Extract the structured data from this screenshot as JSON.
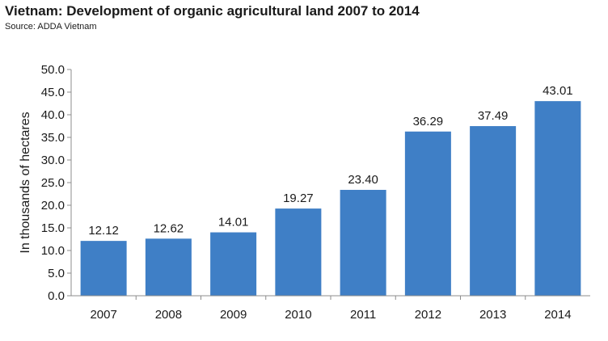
{
  "chart_data": {
    "type": "bar",
    "title": "Vietnam: Development of organic agricultural land 2007 to 2014",
    "subtitle": "Source: ADDA Vietnam",
    "xlabel": "",
    "ylabel": "In thousands of hectares",
    "categories": [
      "2007",
      "2008",
      "2009",
      "2010",
      "2011",
      "2012",
      "2013",
      "2014"
    ],
    "values": [
      12.12,
      12.62,
      14.01,
      19.27,
      23.4,
      36.29,
      37.49,
      43.01
    ],
    "value_labels": [
      "12.12",
      "12.62",
      "14.01",
      "19.27",
      "23.40",
      "36.29",
      "37.49",
      "43.01"
    ],
    "ylim": [
      0,
      50
    ],
    "yticks": [
      "0.0",
      "5.0",
      "10.0",
      "15.0",
      "20.0",
      "25.0",
      "30.0",
      "35.0",
      "40.0",
      "45.0",
      "50.0"
    ],
    "grid": false,
    "legend": "none",
    "bar_color": "#3f7fc6"
  }
}
